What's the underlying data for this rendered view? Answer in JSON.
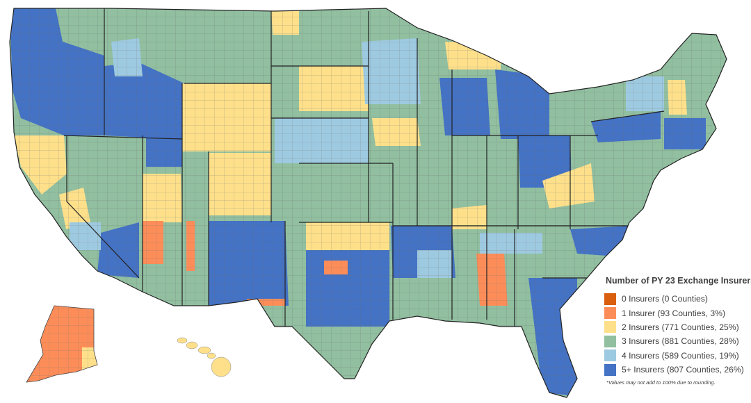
{
  "legend": {
    "title": "Number of PY 23 Exchange Insurers*",
    "items": [
      {
        "label": "0 Insurers (0 Counties)",
        "color": "#d95f0e"
      },
      {
        "label": "1 Insurer (93 Counties, 3%)",
        "color": "#fc8d59"
      },
      {
        "label": "2 Insurers (771 Counties, 25%)",
        "color": "#fee08b"
      },
      {
        "label": "3 Insurers (881 Counties, 28%)",
        "color": "#91bfa0"
      },
      {
        "label": "4 Insurers (589 Counties, 19%)",
        "color": "#9ecae1"
      },
      {
        "label": "5+ Insurers (807 Counties, 26%)",
        "color": "#4472c4"
      }
    ],
    "note": "*Values may not add to 100% due to rounding."
  },
  "colors": {
    "zero": "#d95f0e",
    "one": "#fc8d59",
    "two": "#fee08b",
    "three": "#91bfa0",
    "four": "#9ecae1",
    "five_plus": "#4472c4",
    "border": "#333333"
  }
}
